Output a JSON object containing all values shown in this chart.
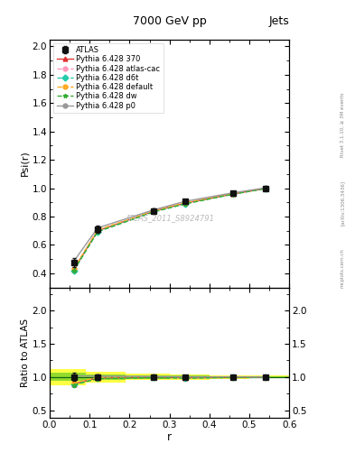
{
  "title": "7000 GeV pp",
  "title_right": "Jets",
  "watermark": "ATLAS_2011_S8924791",
  "rivet_label": "Rivet 3.1.10, ≥ 3M events",
  "arxiv_label": "[arXiv:1306.3436]",
  "mcplots_label": "mcplots.cern.ch",
  "ylabel_main": "Psi(r)",
  "ylabel_ratio": "Ratio to ATLAS",
  "xlabel": "r",
  "xlim": [
    0.0,
    0.6
  ],
  "ylim_main": [
    0.3,
    2.05
  ],
  "ylim_ratio": [
    0.38,
    2.35
  ],
  "yticks_main": [
    0.4,
    0.6,
    0.8,
    1.0,
    1.2,
    1.4,
    1.6,
    1.8,
    2.0
  ],
  "yticks_ratio": [
    0.5,
    1.0,
    1.5,
    2.0
  ],
  "x_data": [
    0.06,
    0.12,
    0.26,
    0.34,
    0.46,
    0.54
  ],
  "atlas_y": [
    0.475,
    0.71,
    0.84,
    0.905,
    0.965,
    1.0
  ],
  "atlas_yerr": [
    0.03,
    0.025,
    0.015,
    0.012,
    0.01,
    0.008
  ],
  "pythia_370_y": [
    0.425,
    0.7,
    0.838,
    0.895,
    0.96,
    0.998
  ],
  "pythia_atlas_cac_y": [
    0.428,
    0.702,
    0.84,
    0.896,
    0.962,
    0.999
  ],
  "pythia_d6t_y": [
    0.42,
    0.695,
    0.835,
    0.892,
    0.96,
    0.998
  ],
  "pythia_default_y": [
    0.432,
    0.705,
    0.84,
    0.897,
    0.962,
    0.999
  ],
  "pythia_dw_y": [
    0.418,
    0.693,
    0.832,
    0.89,
    0.958,
    0.997
  ],
  "pythia_p0_y": [
    0.483,
    0.72,
    0.847,
    0.908,
    0.968,
    1.002
  ],
  "ratio_370": [
    0.895,
    0.986,
    0.998,
    0.99,
    0.995,
    0.998
  ],
  "ratio_atlas_cac": [
    0.902,
    0.989,
    1.0,
    0.99,
    0.997,
    0.999
  ],
  "ratio_d6t": [
    0.885,
    0.979,
    0.994,
    0.986,
    0.995,
    0.998
  ],
  "ratio_default": [
    0.91,
    0.993,
    1.0,
    0.991,
    0.997,
    0.999
  ],
  "ratio_dw": [
    0.88,
    0.976,
    0.991,
    0.984,
    0.993,
    0.997
  ],
  "ratio_p0": [
    1.017,
    1.014,
    1.008,
    1.003,
    1.003,
    1.002
  ],
  "yellow_lo": [
    0.88,
    0.92,
    0.95,
    0.96,
    0.97,
    0.98
  ],
  "yellow_hi": [
    1.12,
    1.08,
    1.05,
    1.04,
    1.03,
    1.02
  ],
  "green_lo": [
    0.94,
    0.96,
    0.975,
    0.98,
    0.985,
    0.99
  ],
  "green_hi": [
    1.06,
    1.04,
    1.025,
    1.02,
    1.015,
    1.01
  ],
  "color_370": "#dd3333",
  "color_atlas_cac": "#ff99bb",
  "color_d6t": "#22ccaa",
  "color_default": "#ffaa22",
  "color_dw": "#33aa33",
  "color_p0": "#999999",
  "color_atlas": "#111111",
  "color_yellow": "#ffff44",
  "color_green": "#66cc22",
  "bg_color": "#ffffff"
}
